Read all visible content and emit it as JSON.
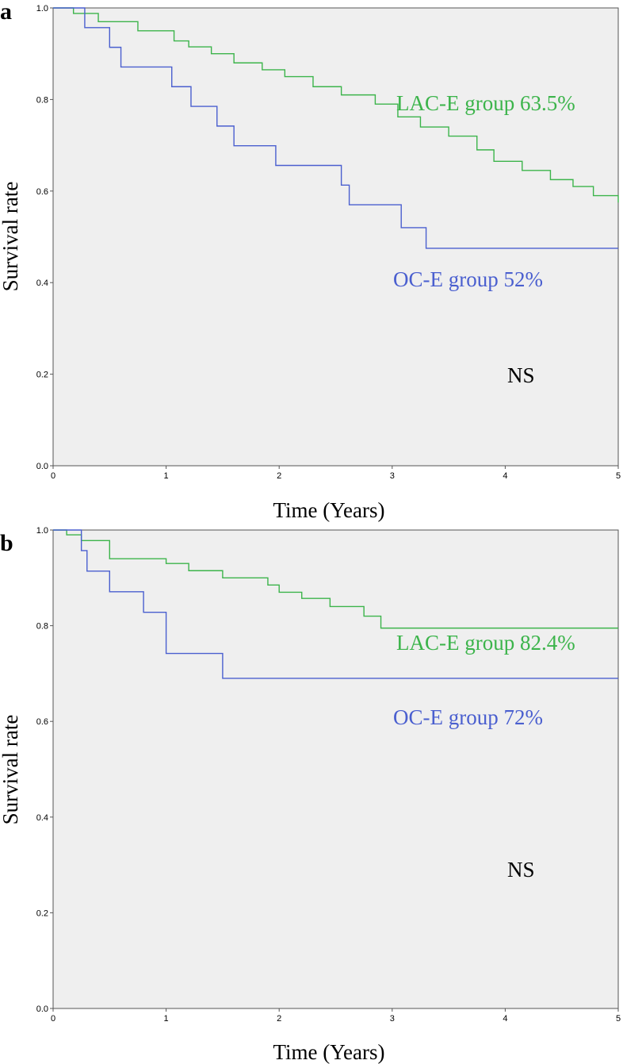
{
  "chart_data": [
    {
      "type": "line",
      "panel_label": "a",
      "xlabel": "Time (Years)",
      "ylabel": "Survival rate",
      "xlim": [
        0,
        5
      ],
      "ylim": [
        0,
        1.0
      ],
      "xticks": [
        "0",
        "1",
        "2",
        "3",
        "4",
        "5"
      ],
      "yticks": [
        "0.0",
        "0.2",
        "0.4",
        "0.6",
        "0.8",
        "1.0"
      ],
      "note": "NS",
      "series": [
        {
          "name": "LAC-E group 63.5%",
          "color": "#3cb44b",
          "x": [
            0,
            0.18,
            0.4,
            0.75,
            1.07,
            1.2,
            1.4,
            1.6,
            1.85,
            2.05,
            2.3,
            2.55,
            2.85,
            3.05,
            3.25,
            3.5,
            3.75,
            3.9,
            4.15,
            4.4,
            4.6,
            4.78,
            5.0
          ],
          "y": [
            1.0,
            0.988,
            0.97,
            0.95,
            0.928,
            0.915,
            0.9,
            0.88,
            0.865,
            0.85,
            0.828,
            0.81,
            0.79,
            0.762,
            0.74,
            0.72,
            0.69,
            0.665,
            0.645,
            0.625,
            0.61,
            0.59,
            0.575
          ]
        },
        {
          "name": "OC-E group 52%",
          "color": "#4a5fcf",
          "x": [
            0,
            0.28,
            0.5,
            0.6,
            1.05,
            1.22,
            1.45,
            1.6,
            1.97,
            2.55,
            2.62,
            3.08,
            3.3,
            5.0
          ],
          "y": [
            1.0,
            0.957,
            0.914,
            0.871,
            0.828,
            0.785,
            0.742,
            0.699,
            0.656,
            0.613,
            0.57,
            0.52,
            0.475,
            0.475
          ]
        }
      ]
    },
    {
      "type": "line",
      "panel_label": "b",
      "xlabel": "Time (Years)",
      "ylabel": "Survival rate",
      "xlim": [
        0,
        5
      ],
      "ylim": [
        0,
        1.0
      ],
      "xticks": [
        "0",
        "1",
        "2",
        "3",
        "4",
        "5"
      ],
      "yticks": [
        "0.0",
        "0.2",
        "0.4",
        "0.6",
        "0.8",
        "1.0"
      ],
      "note": "NS",
      "series": [
        {
          "name": "LAC-E group 82.4%",
          "color": "#3cb44b",
          "x": [
            0,
            0.12,
            0.25,
            0.5,
            1.0,
            1.2,
            1.5,
            1.9,
            2.0,
            2.2,
            2.45,
            2.75,
            2.9,
            3.0,
            5.0
          ],
          "y": [
            1.0,
            0.99,
            0.978,
            0.94,
            0.93,
            0.915,
            0.9,
            0.885,
            0.87,
            0.857,
            0.84,
            0.82,
            0.795,
            0.795,
            0.795
          ]
        },
        {
          "name": "OC-E group 72%",
          "color": "#4a5fcf",
          "x": [
            0,
            0.25,
            0.3,
            0.5,
            0.8,
            1.0,
            1.5,
            5.0
          ],
          "y": [
            1.0,
            0.957,
            0.914,
            0.871,
            0.828,
            0.742,
            0.69,
            0.69
          ]
        }
      ]
    }
  ]
}
